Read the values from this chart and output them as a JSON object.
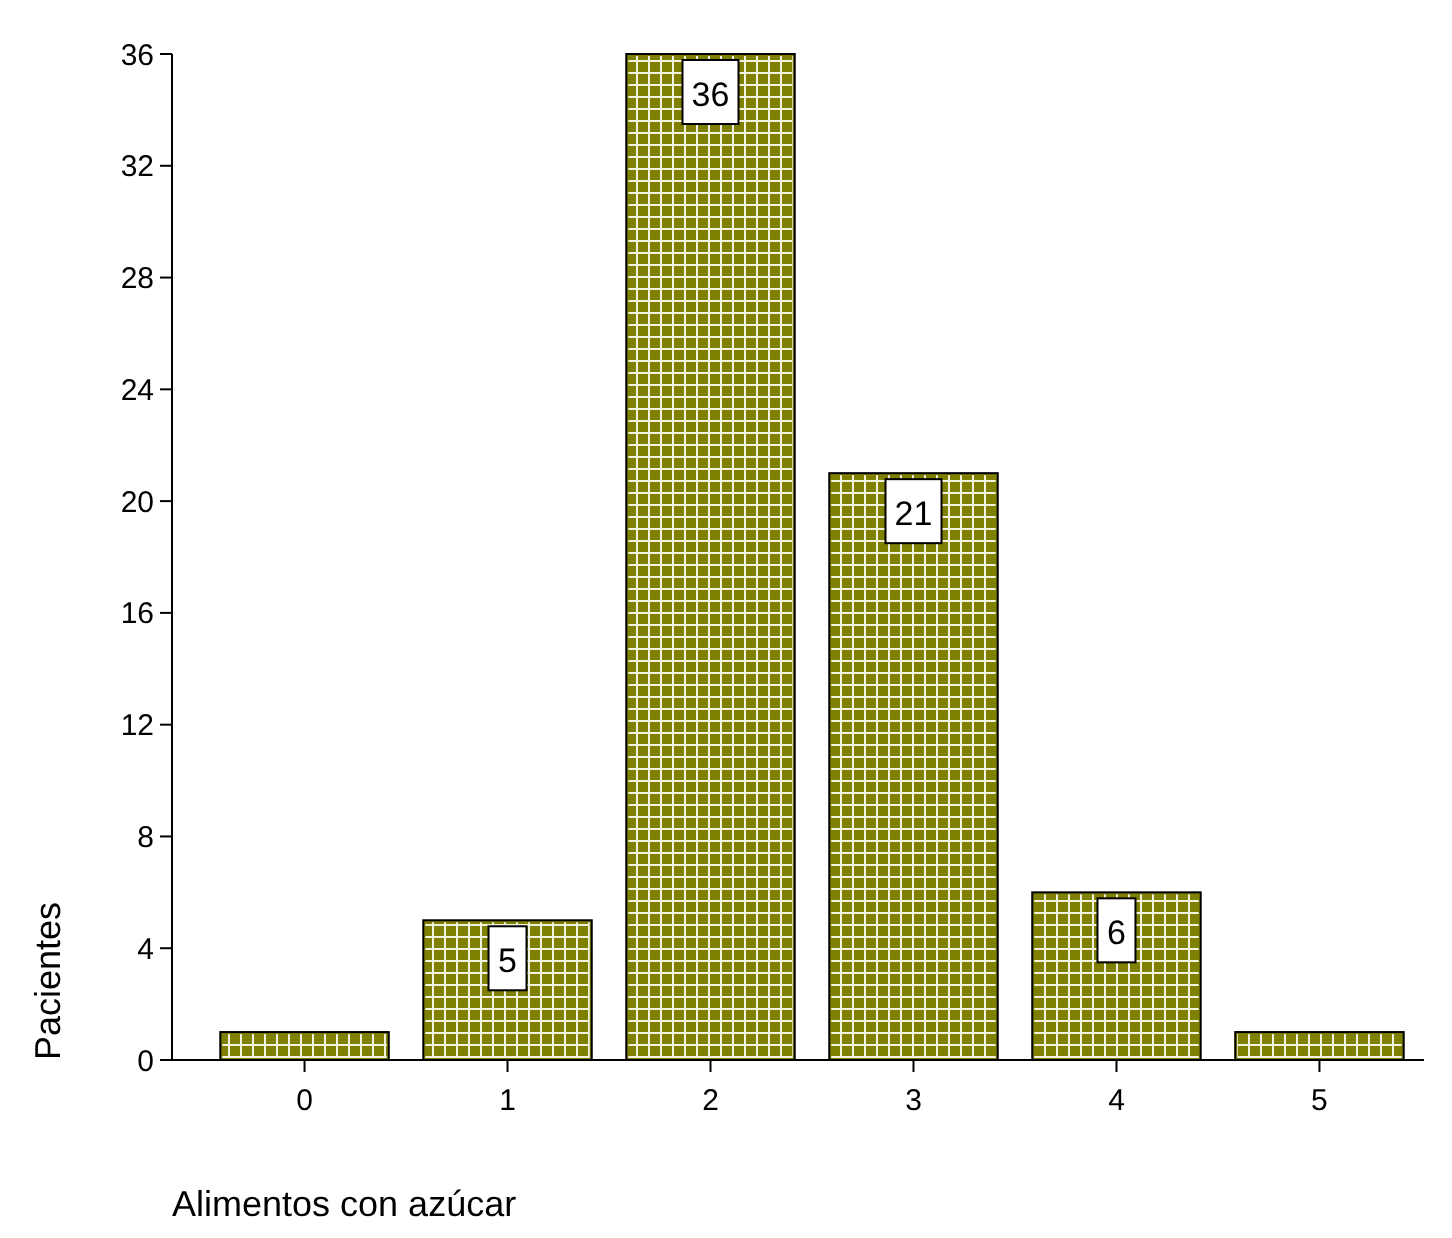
{
  "chart_data": {
    "type": "bar",
    "xlabel": "Alimentos con azúcar",
    "ylabel": "Pacientes",
    "categories": [
      "0",
      "1",
      "2",
      "3",
      "4",
      "5"
    ],
    "values": [
      1,
      5,
      36,
      21,
      6,
      1
    ],
    "value_labels": [
      null,
      "5",
      "36",
      "21",
      "6",
      null
    ],
    "color": "#808000",
    "ylim": [
      0,
      36
    ],
    "yticks": [
      0,
      4,
      8,
      12,
      16,
      20,
      24,
      28,
      32,
      36
    ],
    "grid": false
  }
}
